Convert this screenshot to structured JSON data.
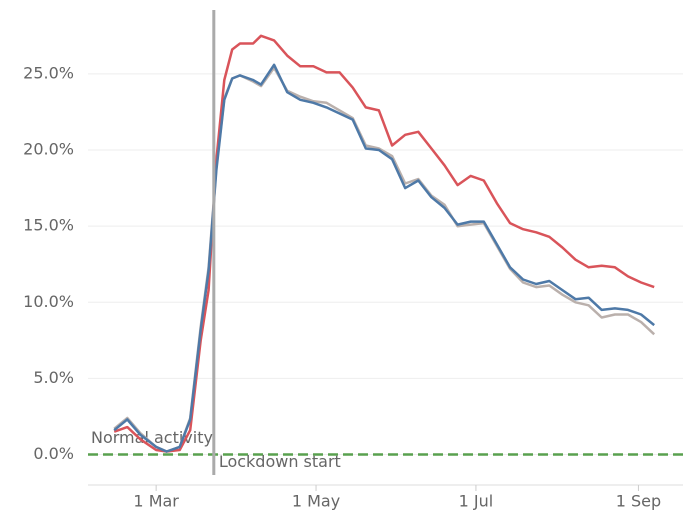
{
  "chart_data": {
    "type": "line",
    "x": [
      "14 Feb",
      "19 Feb",
      "24 Feb",
      "1 Mar",
      "5 Mar",
      "10 Mar",
      "14 Mar",
      "18 Mar",
      "21 Mar",
      "24 Mar",
      "27 Mar",
      "30 Mar",
      "2 Apr",
      "7 Apr",
      "10 Apr",
      "15 Apr",
      "20 Apr",
      "25 Apr",
      "30 Apr",
      "5 May",
      "10 May",
      "15 May",
      "20 May",
      "25 May",
      "30 May",
      "4 Jun",
      "9 Jun",
      "14 Jun",
      "19 Jun",
      "24 Jun",
      "29 Jun",
      "4 Jul",
      "9 Jul",
      "14 Jul",
      "19 Jul",
      "24 Jul",
      "29 Jul",
      "3 Aug",
      "8 Aug",
      "13 Aug",
      "18 Aug",
      "23 Aug",
      "28 Aug",
      "2 Sep",
      "7 Sep"
    ],
    "series": [
      {
        "color": "#bab0ac",
        "values": [
          1.7,
          2.4,
          1.4,
          0.5,
          0.2,
          0.5,
          2.4,
          8.4,
          12.3,
          18.9,
          23.4,
          24.7,
          24.9,
          24.5,
          24.2,
          25.4,
          23.9,
          23.5,
          23.2,
          23.1,
          22.6,
          22.1,
          20.3,
          20.1,
          19.6,
          17.8,
          18.1,
          17.0,
          16.4,
          15.0,
          15.1,
          15.2,
          13.7,
          12.2,
          11.3,
          11.0,
          11.1,
          10.5,
          10.0,
          9.8,
          9.0,
          9.2,
          9.2,
          8.7,
          7.9
        ]
      },
      {
        "color": "#d9545a",
        "values": [
          1.5,
          1.8,
          1.0,
          0.3,
          0.2,
          0.3,
          1.6,
          7.5,
          10.8,
          19.4,
          24.6,
          26.6,
          27.0,
          27.0,
          27.5,
          27.2,
          26.2,
          25.5,
          25.5,
          25.1,
          25.1,
          24.1,
          22.8,
          22.6,
          20.3,
          21.0,
          21.2,
          20.1,
          19.0,
          17.7,
          18.3,
          18.0,
          16.5,
          15.2,
          14.8,
          14.6,
          14.3,
          13.6,
          12.8,
          12.3,
          12.4,
          12.3,
          11.7,
          11.3,
          11.0
        ]
      },
      {
        "color": "#4e79a7",
        "values": [
          1.6,
          2.3,
          1.3,
          0.5,
          0.2,
          0.5,
          2.3,
          8.2,
          12.1,
          18.7,
          23.3,
          24.7,
          24.9,
          24.6,
          24.3,
          25.6,
          23.8,
          23.3,
          23.1,
          22.8,
          22.4,
          22.0,
          20.1,
          20.0,
          19.4,
          17.5,
          18.0,
          16.9,
          16.2,
          15.1,
          15.3,
          15.3,
          13.8,
          12.3,
          11.5,
          11.2,
          11.4,
          10.8,
          10.2,
          10.3,
          9.5,
          9.6,
          9.5,
          9.2,
          8.5
        ]
      }
    ],
    "xlim": [
      "4 Feb",
      "18 Sep"
    ],
    "xticks": [
      "1 Mar",
      "1 May",
      "1 Jul",
      "1 Sep"
    ],
    "ylim": [
      -2,
      29
    ],
    "yticks": [
      {
        "value": 0,
        "label": "0.0%"
      },
      {
        "value": 5,
        "label": "5.0%"
      },
      {
        "value": 10,
        "label": "10.0%"
      },
      {
        "value": 15,
        "label": "15.0%"
      },
      {
        "value": 20,
        "label": "20.0%"
      },
      {
        "value": 25,
        "label": "25.0%"
      }
    ],
    "grid": true,
    "annotations": [
      {
        "label": "Normal activity",
        "y": 0,
        "color": "#59a14f"
      },
      {
        "label": "Lockdown start",
        "x": "23 Mar",
        "color": "#aaaaaa"
      }
    ]
  }
}
